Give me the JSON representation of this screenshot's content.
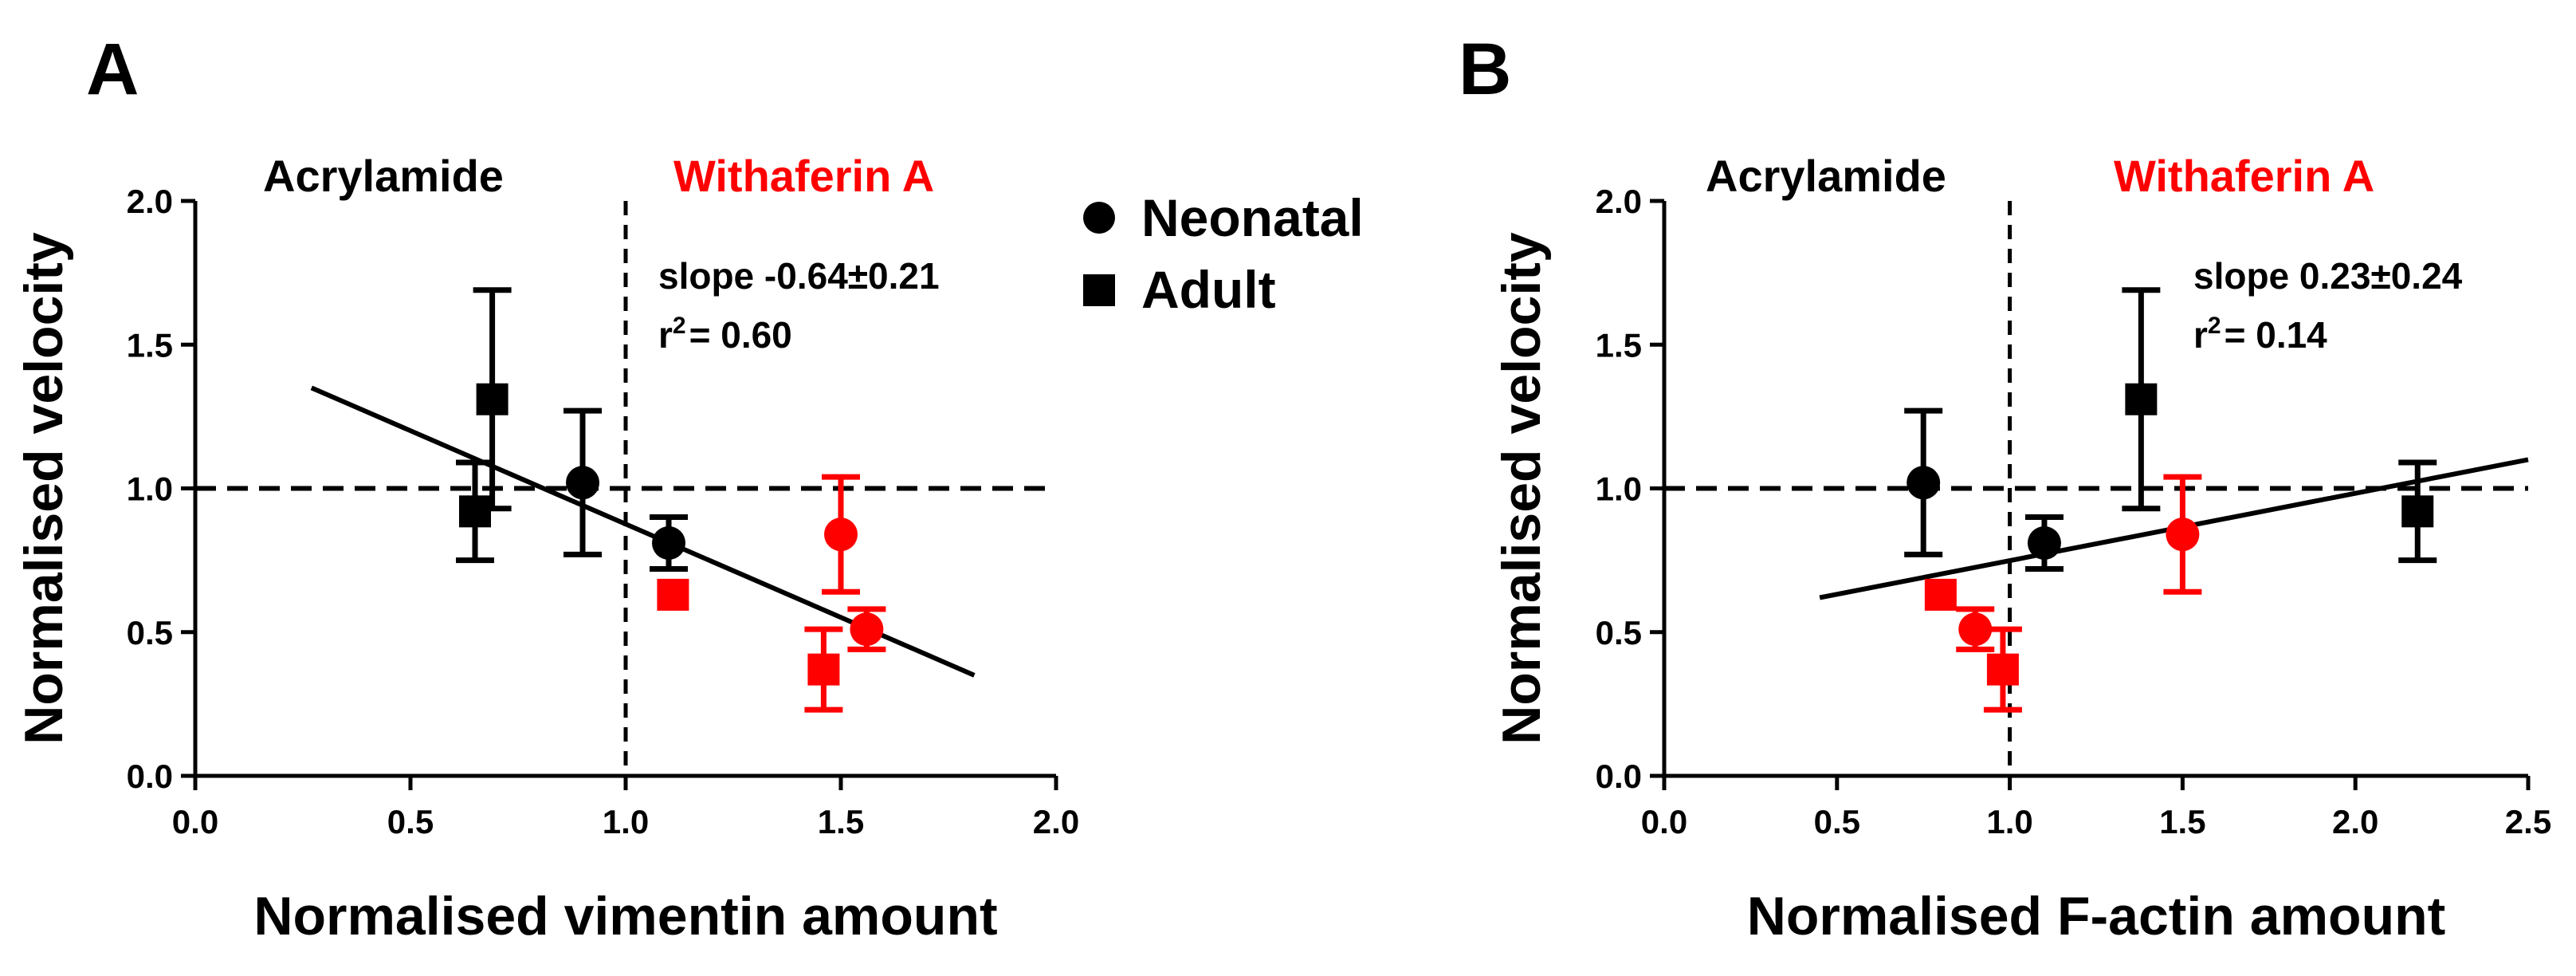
{
  "colors": {
    "control": "#000000",
    "withaferin": "#ff0000"
  },
  "legend": {
    "neonatal": "Neonatal",
    "adult": "Adult"
  },
  "chart_data": [
    {
      "type": "scatter",
      "panel": "A",
      "xlabel": "Normalised vimentin amount",
      "ylabel": "Normalised velocity",
      "xlim": [
        0,
        2.0
      ],
      "ylim": [
        0,
        2.0
      ],
      "xticks": [
        "0.0",
        "0.5",
        "1.0",
        "1.5",
        "2.0"
      ],
      "yticks": [
        "0.0",
        "0.5",
        "1.0",
        "1.5",
        "2.0"
      ],
      "group_labels": {
        "left": "Acrylamide",
        "right": "Withaferin A"
      },
      "stats": {
        "slope": "slope -0.64±0.21",
        "r2_prefix": "r",
        "r2_sup": "2",
        "r2_value": "= 0.60"
      },
      "reference_lines": {
        "y": 1.0,
        "x": 1.0
      },
      "fit_line": {
        "x": [
          0.27,
          1.81
        ],
        "y": [
          1.35,
          0.35
        ]
      },
      "points": [
        {
          "group": "Neonatal",
          "treatment": "control",
          "x": 0.9,
          "y": 1.02,
          "err_hi": 0.25,
          "err_lo": 0.25
        },
        {
          "group": "Neonatal",
          "treatment": "control",
          "x": 1.1,
          "y": 0.81,
          "err_hi": 0.09,
          "err_lo": 0.09
        },
        {
          "group": "Neonatal",
          "treatment": "withaferin",
          "x": 1.5,
          "y": 0.84,
          "err_hi": 0.2,
          "err_lo": 0.2
        },
        {
          "group": "Neonatal",
          "treatment": "withaferin",
          "x": 1.56,
          "y": 0.51,
          "err_hi": 0.07,
          "err_lo": 0.07
        },
        {
          "group": "Adult",
          "treatment": "control",
          "x": 0.69,
          "y": 1.31,
          "err_hi": 0.38,
          "err_lo": 0.38
        },
        {
          "group": "Adult",
          "treatment": "control",
          "x": 0.65,
          "y": 0.92,
          "err_hi": 0.17,
          "err_lo": 0.17
        },
        {
          "group": "Adult",
          "treatment": "withaferin",
          "x": 1.11,
          "y": 0.63,
          "err_hi": 0,
          "err_lo": 0
        },
        {
          "group": "Adult",
          "treatment": "withaferin",
          "x": 1.46,
          "y": 0.37,
          "err_hi": 0.14,
          "err_lo": 0.14
        }
      ]
    },
    {
      "type": "scatter",
      "panel": "B",
      "xlabel": "Normalised F-actin amount",
      "ylabel": "Normalised velocity",
      "xlim": [
        0,
        2.5
      ],
      "ylim": [
        0,
        2.0
      ],
      "xticks": [
        "0.0",
        "0.5",
        "1.0",
        "1.5",
        "2.0",
        "2.5"
      ],
      "yticks": [
        "0.0",
        "0.5",
        "1.0",
        "1.5",
        "2.0"
      ],
      "group_labels": {
        "left": "Acrylamide",
        "right": "Withaferin A"
      },
      "stats": {
        "slope": "slope 0.23±0.24",
        "r2_prefix": "r",
        "r2_sup": "2",
        "r2_value": "= 0.14"
      },
      "reference_lines": {
        "y": 1.0,
        "x": 1.0
      },
      "fit_line": {
        "x": [
          0.45,
          2.5
        ],
        "y": [
          0.62,
          1.1
        ]
      },
      "points": [
        {
          "group": "Neonatal",
          "treatment": "control",
          "x": 0.75,
          "y": 1.02,
          "err_hi": 0.25,
          "err_lo": 0.25
        },
        {
          "group": "Neonatal",
          "treatment": "control",
          "x": 1.1,
          "y": 0.81,
          "err_hi": 0.09,
          "err_lo": 0.09
        },
        {
          "group": "Neonatal",
          "treatment": "withaferin",
          "x": 1.5,
          "y": 0.84,
          "err_hi": 0.2,
          "err_lo": 0.2
        },
        {
          "group": "Neonatal",
          "treatment": "withaferin",
          "x": 0.9,
          "y": 0.51,
          "err_hi": 0.07,
          "err_lo": 0.07
        },
        {
          "group": "Adult",
          "treatment": "control",
          "x": 1.38,
          "y": 1.31,
          "err_hi": 0.38,
          "err_lo": 0.38
        },
        {
          "group": "Adult",
          "treatment": "control",
          "x": 2.18,
          "y": 0.92,
          "err_hi": 0.17,
          "err_lo": 0.17
        },
        {
          "group": "Adult",
          "treatment": "withaferin",
          "x": 0.8,
          "y": 0.63,
          "err_hi": 0,
          "err_lo": 0
        },
        {
          "group": "Adult",
          "treatment": "withaferin",
          "x": 0.98,
          "y": 0.37,
          "err_hi": 0.14,
          "err_lo": 0.14
        }
      ]
    }
  ]
}
